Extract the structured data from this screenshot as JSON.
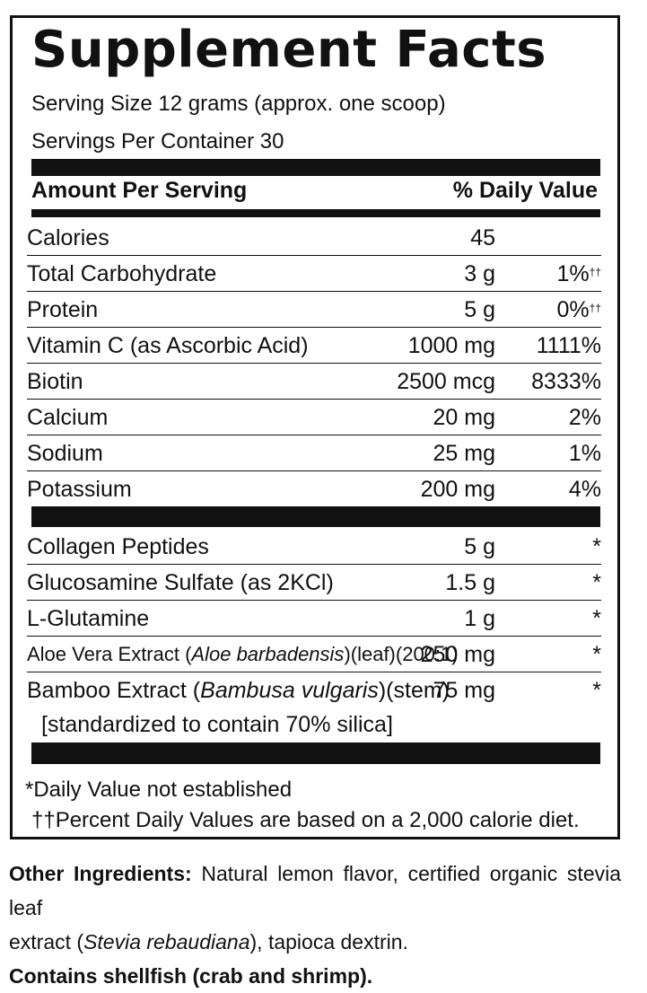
{
  "title": "Supplement Facts",
  "serving_size": "Serving Size 12 grams (approx. one scoop)",
  "servings_per_container": "Servings Per Container 30",
  "header": {
    "amount_per_serving": "Amount Per Serving",
    "daily_value": "% Daily Value"
  },
  "nutrients": [
    {
      "name": "Calories",
      "amount": "45",
      "dv": "",
      "mark": ""
    },
    {
      "name": "Total Carbohydrate",
      "amount": "3 g",
      "dv": "1%",
      "mark": "††"
    },
    {
      "name": "Protein",
      "amount": "5 g",
      "dv": "0%",
      "mark": "††"
    },
    {
      "name": "Vitamin C (as Ascorbic Acid)",
      "amount": "1000 mg",
      "dv": "1111%",
      "mark": ""
    },
    {
      "name": "Biotin",
      "amount": "2500 mcg",
      "dv": "8333%",
      "mark": ""
    },
    {
      "name": "Calcium",
      "amount": "20 mg",
      "dv": "2%",
      "mark": ""
    },
    {
      "name": "Sodium",
      "amount": "25 mg",
      "dv": "1%",
      "mark": ""
    },
    {
      "name": "Potassium",
      "amount": "200 mg",
      "dv": "4%",
      "mark": ""
    }
  ],
  "ingredients": [
    {
      "name": "Collagen Peptides",
      "amount": "5 g",
      "dv": "*"
    },
    {
      "name": "Glucosamine Sulfate (as 2KCl)",
      "amount": "1.5 g",
      "dv": "*"
    },
    {
      "name": "L-Glutamine",
      "amount": "1 g",
      "dv": "*"
    },
    {
      "name_pre": "Aloe Vera Extract (",
      "name_italic": "Aloe barbadensis",
      "name_post": ")(leaf)(200:1)",
      "amount": "250 mg",
      "dv": "*"
    },
    {
      "name_pre": "Bamboo Extract (",
      "name_italic": "Bambusa vulgaris",
      "name_post": ")(stem)",
      "amount": "75 mg",
      "dv": "*",
      "sub": "[standardized to contain 70% silica]"
    }
  ],
  "footnotes": {
    "dv_not_established": "*Daily Value not established",
    "percent_dv": "††Percent Daily Values are based on a 2,000 calorie diet."
  },
  "other_ingredients": {
    "label": "Other Ingredients:",
    "text_1": "Natural lemon flavor, certified organic stevia leaf",
    "text_2a": "extract (",
    "text_2_italic": "Stevia rebaudiana",
    "text_2b": "), tapioca dextrin."
  },
  "allergen": "Contains shellfish (crab and shrimp)."
}
